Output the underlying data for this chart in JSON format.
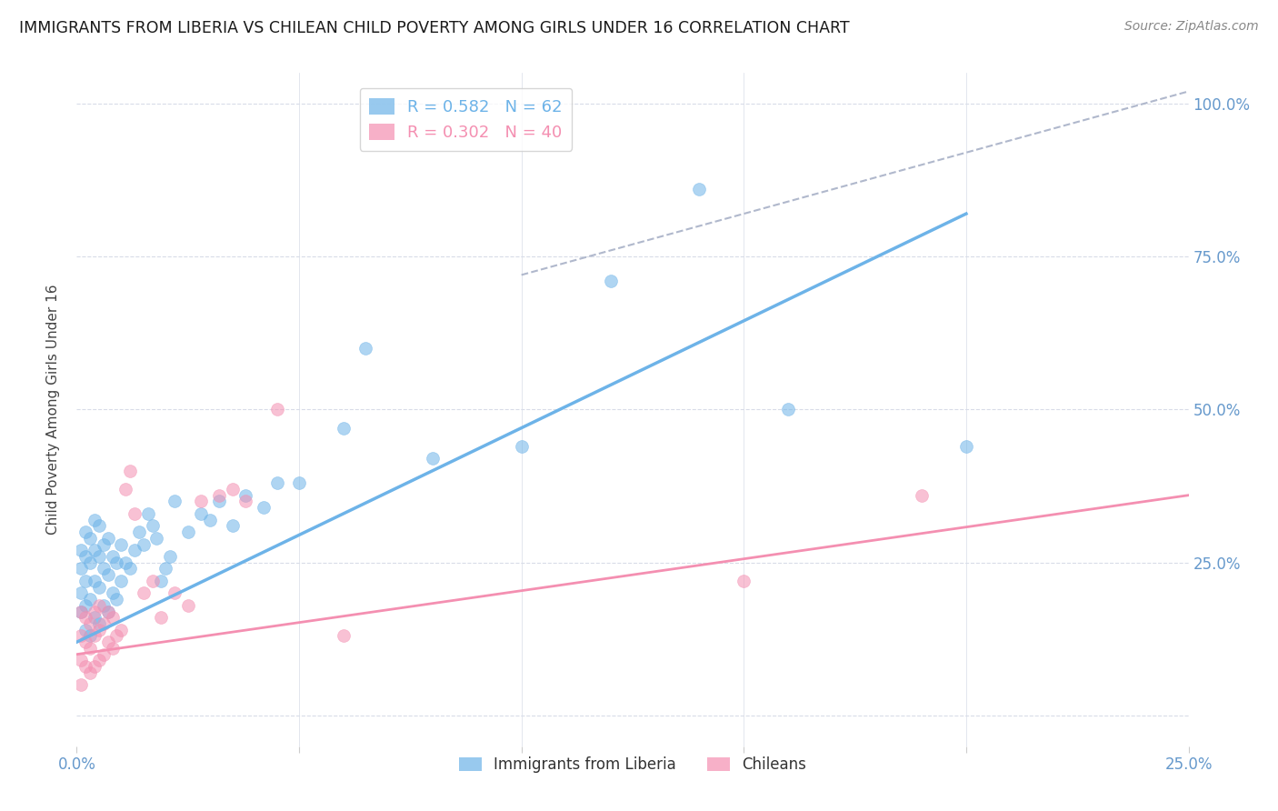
{
  "title": "IMMIGRANTS FROM LIBERIA VS CHILEAN CHILD POVERTY AMONG GIRLS UNDER 16 CORRELATION CHART",
  "source": "Source: ZipAtlas.com",
  "ylabel": "Child Poverty Among Girls Under 16",
  "xlim": [
    0.0,
    0.25
  ],
  "ylim": [
    -0.05,
    1.05
  ],
  "plot_ylim": [
    0.0,
    1.0
  ],
  "xtick_positions": [
    0.0,
    0.05,
    0.1,
    0.15,
    0.2,
    0.25
  ],
  "xtick_labels": [
    "0.0%",
    "",
    "",
    "",
    "",
    "25.0%"
  ],
  "ytick_positions": [
    0.0,
    0.25,
    0.5,
    0.75,
    1.0
  ],
  "ytick_labels_right": [
    "",
    "25.0%",
    "50.0%",
    "75.0%",
    "100.0%"
  ],
  "legend_entries": [
    {
      "label": "Immigrants from Liberia",
      "R": "0.582",
      "N": "62",
      "color": "#6db3e8"
    },
    {
      "label": "Chileans",
      "R": "0.302",
      "N": "40",
      "color": "#f48fb1"
    }
  ],
  "blue_scatter_x": [
    0.001,
    0.001,
    0.001,
    0.001,
    0.002,
    0.002,
    0.002,
    0.002,
    0.002,
    0.003,
    0.003,
    0.003,
    0.003,
    0.004,
    0.004,
    0.004,
    0.004,
    0.005,
    0.005,
    0.005,
    0.005,
    0.006,
    0.006,
    0.006,
    0.007,
    0.007,
    0.007,
    0.008,
    0.008,
    0.009,
    0.009,
    0.01,
    0.01,
    0.011,
    0.012,
    0.013,
    0.014,
    0.015,
    0.016,
    0.017,
    0.018,
    0.019,
    0.02,
    0.021,
    0.022,
    0.025,
    0.028,
    0.03,
    0.032,
    0.035,
    0.038,
    0.042,
    0.045,
    0.05,
    0.06,
    0.065,
    0.08,
    0.1,
    0.12,
    0.14,
    0.16,
    0.2
  ],
  "blue_scatter_y": [
    0.17,
    0.2,
    0.24,
    0.27,
    0.14,
    0.18,
    0.22,
    0.26,
    0.3,
    0.13,
    0.19,
    0.25,
    0.29,
    0.16,
    0.22,
    0.27,
    0.32,
    0.15,
    0.21,
    0.26,
    0.31,
    0.18,
    0.24,
    0.28,
    0.17,
    0.23,
    0.29,
    0.2,
    0.26,
    0.19,
    0.25,
    0.22,
    0.28,
    0.25,
    0.24,
    0.27,
    0.3,
    0.28,
    0.33,
    0.31,
    0.29,
    0.22,
    0.24,
    0.26,
    0.35,
    0.3,
    0.33,
    0.32,
    0.35,
    0.31,
    0.36,
    0.34,
    0.38,
    0.38,
    0.47,
    0.6,
    0.42,
    0.44,
    0.71,
    0.86,
    0.5,
    0.44
  ],
  "pink_scatter_x": [
    0.001,
    0.001,
    0.001,
    0.001,
    0.002,
    0.002,
    0.002,
    0.003,
    0.003,
    0.003,
    0.004,
    0.004,
    0.004,
    0.005,
    0.005,
    0.005,
    0.006,
    0.006,
    0.007,
    0.007,
    0.008,
    0.008,
    0.009,
    0.01,
    0.011,
    0.012,
    0.013,
    0.015,
    0.017,
    0.019,
    0.022,
    0.025,
    0.028,
    0.032,
    0.035,
    0.038,
    0.045,
    0.06,
    0.15,
    0.19
  ],
  "pink_scatter_y": [
    0.05,
    0.09,
    0.13,
    0.17,
    0.08,
    0.12,
    0.16,
    0.07,
    0.11,
    0.15,
    0.08,
    0.13,
    0.17,
    0.09,
    0.14,
    0.18,
    0.1,
    0.15,
    0.12,
    0.17,
    0.11,
    0.16,
    0.13,
    0.14,
    0.37,
    0.4,
    0.33,
    0.2,
    0.22,
    0.16,
    0.2,
    0.18,
    0.35,
    0.36,
    0.37,
    0.35,
    0.5,
    0.13,
    0.22,
    0.36
  ],
  "blue_line": {
    "x0": 0.0,
    "y0": 0.12,
    "x1": 0.2,
    "y1": 0.82
  },
  "pink_line": {
    "x0": 0.0,
    "y0": 0.1,
    "x1": 0.25,
    "y1": 0.36
  },
  "dashed_line": {
    "x0": 0.1,
    "y0": 0.72,
    "x1": 0.25,
    "y1": 1.02
  },
  "blue_color": "#6db3e8",
  "pink_color": "#f48fb1",
  "dashed_color": "#b0b8cc",
  "grid_color": "#d8dce8",
  "background_color": "#ffffff",
  "title_color": "#1a1a1a",
  "title_fontsize": 12.5,
  "axis_color": "#6699cc",
  "ylabel_color": "#444444",
  "source_color": "#888888",
  "scatter_alpha": 0.55,
  "scatter_size": 100,
  "legend_fontsize": 13
}
